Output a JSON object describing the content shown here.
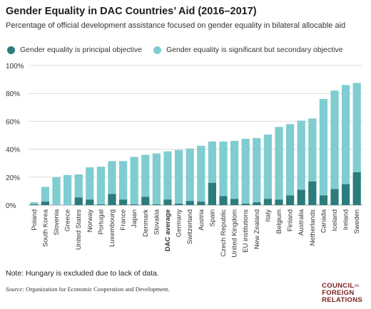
{
  "header": {
    "title": "Gender Equality in DAC Countries’ Aid (2016–2017)",
    "subtitle": "Percentage of official development assistance focused on gender equality in bilateral allocable aid"
  },
  "legend": [
    {
      "label": "Gender equality is principal objective",
      "color": "#2b7c7c"
    },
    {
      "label": "Gender equality is significant but secondary objective",
      "color": "#7fcdd1"
    }
  ],
  "chart_data": {
    "type": "bar",
    "stacked": true,
    "categories": [
      "Poland",
      "South Korea",
      "Slovenia",
      "Greece",
      "United States",
      "Norway",
      "Portugal",
      "Luxembourg",
      "France",
      "Japan",
      "Denmark",
      "Slovakia",
      "DAC average",
      "Germany",
      "Switzerland",
      "Austria",
      "Spain",
      "Czech Republic",
      "United Kingdom",
      "EU institutions",
      "New Zealand",
      "Italy",
      "Belgium",
      "Finland",
      "Australia",
      "Netherlands",
      "Canada",
      "Iceland",
      "Ireland",
      "Sweden"
    ],
    "highlight_category": "DAC average",
    "series": [
      {
        "name": "Gender equality is principal objective",
        "color": "#2b7c7c",
        "values": [
          0.5,
          2.5,
          0,
          0,
          5.5,
          4,
          0.5,
          8,
          4,
          0.5,
          6,
          0.5,
          4,
          1,
          3,
          2.5,
          16,
          6.5,
          4.5,
          1,
          2,
          4.5,
          4,
          7,
          11,
          17,
          7,
          11.5,
          15,
          23.5
        ]
      },
      {
        "name": "Gender equality is significant but secondary objective",
        "color": "#7fcdd1",
        "values": [
          1.5,
          10.5,
          20,
          21.5,
          16.5,
          23,
          27,
          23.5,
          27.5,
          34,
          30,
          36.5,
          34.5,
          38.5,
          37.5,
          40,
          29.5,
          39,
          41.5,
          46.5,
          46,
          46,
          52,
          51,
          49.5,
          45,
          69,
          70.5,
          71,
          64
        ]
      }
    ],
    "y_ticks": [
      "0%",
      "20%",
      "40%",
      "60%",
      "80%",
      "100%"
    ],
    "ylim": [
      0,
      100
    ],
    "grid": true
  },
  "footer": {
    "note": "Note: Hungary is excluded due to lack of data.",
    "source_label": "Source:",
    "source_text": "Organization for Economic Cooperation and Development.",
    "logo_line1": "COUNCIL",
    "logo_on": "on",
    "logo_line2": "FOREIGN",
    "logo_line3": "RELATIONS"
  }
}
